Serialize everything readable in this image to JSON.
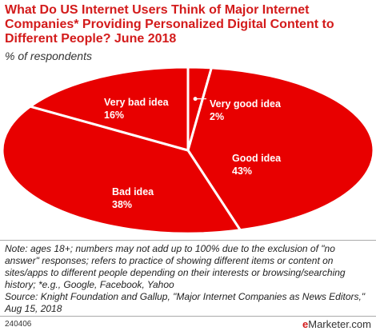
{
  "title": "What Do US Internet Users Think of Major Internet Companies* Providing Personalized Digital Content to Different People? June 2018",
  "subtitle": "% of respondents",
  "chart_data": {
    "type": "pie",
    "slices": [
      {
        "label": "Very good idea",
        "value": 2
      },
      {
        "label": "Good idea",
        "value": 43
      },
      {
        "label": "Bad idea",
        "value": 38
      },
      {
        "label": "Very bad idea",
        "value": 16
      }
    ],
    "value_suffix": "%",
    "colors": {
      "fill": "#e80000",
      "stroke": "#ffffff"
    }
  },
  "note": "Note: ages 18+; numbers may not add up to 100% due to the exclusion of \"no answer\" responses; refers to practice of showing different items or content on sites/apps to different people depending on their interests or browsing/searching history; *e.g., Google, Facebook, Yahoo\nSource: Knight Foundation and Gallup, \"Major Internet Companies as News Editors,\" Aug 15, 2018",
  "footer": {
    "chart_id": "240406",
    "brand_e": "e",
    "brand_rest": "Marketer.com"
  }
}
